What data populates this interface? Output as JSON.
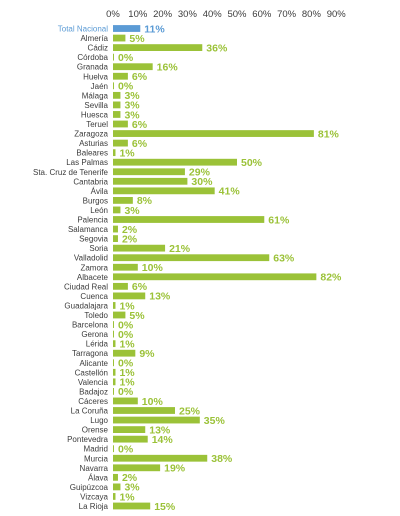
{
  "chart_data": {
    "type": "bar",
    "orientation": "horizontal",
    "title": "",
    "xlabel": "",
    "ylabel": "",
    "xlim": [
      0,
      90
    ],
    "x_tick_values": [
      0,
      10,
      20,
      30,
      40,
      50,
      60,
      70,
      80,
      90
    ],
    "x_tick_labels": [
      "0%",
      "10%",
      "20%",
      "30%",
      "40%",
      "50%",
      "60%",
      "70%",
      "80%",
      "90%"
    ],
    "grid": false,
    "legend": "none",
    "colors": {
      "bar": "#9bc238",
      "highlight": "#5b9bd5",
      "label_text": "#3c3c3c"
    },
    "highlight_category": "Total Nacional",
    "categories": [
      "Total Nacional",
      "Almería",
      "Cádiz",
      "Córdoba",
      "Granada",
      "Huelva",
      "Jaén",
      "Málaga",
      "Sevilla",
      "Huesca",
      "Teruel",
      "Zaragoza",
      "Asturias",
      "Baleares",
      "Las Palmas",
      "Sta. Cruz de Tenerife",
      "Cantabria",
      "Ávila",
      "Burgos",
      "León",
      "Palencia",
      "Salamanca",
      "Segovia",
      "Soria",
      "Valladolid",
      "Zamora",
      "Albacete",
      "Ciudad Real",
      "Cuenca",
      "Guadalajara",
      "Toledo",
      "Barcelona",
      "Gerona",
      "Lérida",
      "Tarragona",
      "Alicante",
      "Castellón",
      "Valencia",
      "Badajoz",
      "Cáceres",
      "La Coruña",
      "Lugo",
      "Orense",
      "Pontevedra",
      "Madrid",
      "Murcia",
      "Navarra",
      "Álava",
      "Guipúzcoa",
      "Vizcaya",
      "La Rioja"
    ],
    "values": [
      11,
      5,
      36,
      0,
      16,
      6,
      0,
      3,
      3,
      3,
      6,
      81,
      6,
      1,
      50,
      29,
      30,
      41,
      8,
      3,
      61,
      2,
      2,
      21,
      63,
      10,
      82,
      6,
      13,
      1,
      5,
      0,
      0,
      1,
      9,
      0,
      1,
      1,
      0,
      10,
      25,
      35,
      13,
      14,
      0,
      38,
      19,
      2,
      3,
      1,
      15
    ],
    "value_labels": [
      "11%",
      "5%",
      "36%",
      "0%",
      "16%",
      "6%",
      "0%",
      "3%",
      "3%",
      "3%",
      "6%",
      "81%",
      "6%",
      "1%",
      "50%",
      "29%",
      "30%",
      "41%",
      "8%",
      "3%",
      "61%",
      "2%",
      "2%",
      "21%",
      "63%",
      "10%",
      "82%",
      "6%",
      "13%",
      "1%",
      "5%",
      "0%",
      "0%",
      "1%",
      "9%",
      "0%",
      "1%",
      "1%",
      "0%",
      "10%",
      "25%",
      "35%",
      "13%",
      "14%",
      "0%",
      "38%",
      "19%",
      "2%",
      "3%",
      "1%",
      "15%"
    ]
  }
}
